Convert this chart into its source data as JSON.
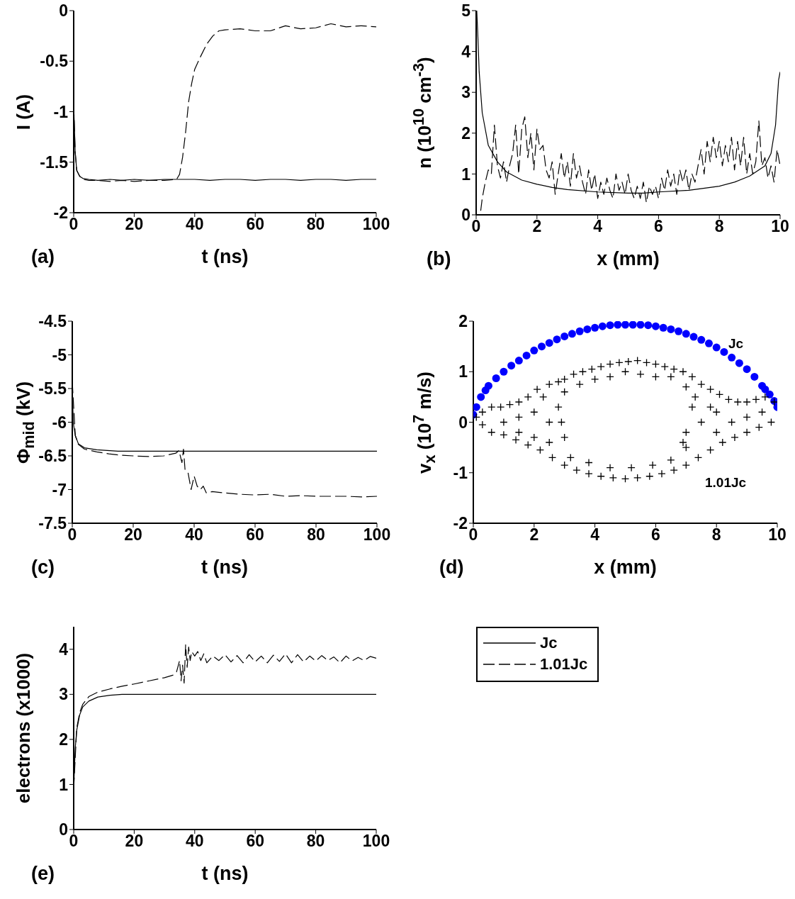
{
  "chart_data": [
    {
      "type": "line",
      "xlabel": "t (ns)",
      "ylabel": "I (A)",
      "annotations": [
        "(a)"
      ],
      "xlim": [
        0,
        100
      ],
      "xticks": [
        0,
        20,
        40,
        60,
        80,
        100
      ],
      "ylim": [
        -2,
        0
      ],
      "yticks": [
        -2,
        -1.5,
        -1,
        -0.5,
        0
      ],
      "series": [
        {
          "color": "#000000",
          "line_style": "solid",
          "x": [
            0,
            0.5,
            1,
            2,
            3,
            5,
            8,
            12,
            16,
            20,
            25,
            30,
            35,
            40,
            45,
            50,
            55,
            60,
            65,
            70,
            75,
            80,
            85,
            90,
            95,
            100
          ],
          "values": [
            -0.93,
            -1.4,
            -1.58,
            -1.64,
            -1.66,
            -1.67,
            -1.68,
            -1.67,
            -1.68,
            -1.67,
            -1.68,
            -1.67,
            -1.67,
            -1.67,
            -1.68,
            -1.67,
            -1.67,
            -1.68,
            -1.67,
            -1.67,
            -1.68,
            -1.67,
            -1.67,
            -1.68,
            -1.67,
            -1.67
          ]
        },
        {
          "color": "#000000",
          "line_style": "dashed",
          "x": [
            0,
            0.5,
            1,
            2,
            3,
            5,
            8,
            12,
            16,
            20,
            25,
            30,
            34,
            35,
            36,
            37,
            38,
            39,
            40,
            42,
            44,
            46,
            48,
            50,
            55,
            60,
            65,
            70,
            75,
            80,
            85,
            90,
            95,
            100
          ],
          "values": [
            -0.93,
            -1.4,
            -1.58,
            -1.64,
            -1.67,
            -1.68,
            -1.68,
            -1.69,
            -1.68,
            -1.69,
            -1.68,
            -1.68,
            -1.67,
            -1.62,
            -1.45,
            -1.2,
            -0.9,
            -0.72,
            -0.58,
            -0.45,
            -0.33,
            -0.25,
            -0.2,
            -0.19,
            -0.18,
            -0.2,
            -0.2,
            -0.15,
            -0.18,
            -0.17,
            -0.13,
            -0.16,
            -0.15,
            -0.16
          ]
        }
      ]
    },
    {
      "type": "line",
      "xlabel": "x (mm)",
      "ylabel": "n (10$^{10}$ cm$^{-3}$)",
      "annotations": [
        "(b)"
      ],
      "xlim": [
        0,
        10
      ],
      "xticks": [
        0,
        2,
        4,
        6,
        8,
        10
      ],
      "ylim": [
        0,
        5
      ],
      "yticks": [
        0,
        1,
        2,
        3,
        4,
        5
      ],
      "series": [
        {
          "color": "#000000",
          "line_style": "solid",
          "x": [
            0.02,
            0.05,
            0.1,
            0.2,
            0.4,
            0.7,
            1,
            1.5,
            2,
            2.5,
            3,
            4,
            5,
            5.5,
            6,
            7,
            8,
            8.5,
            9,
            9.5,
            9.7,
            9.85,
            9.95,
            10
          ],
          "values": [
            5,
            4.5,
            3.5,
            2.5,
            1.7,
            1.3,
            1.05,
            0.85,
            0.75,
            0.67,
            0.62,
            0.56,
            0.53,
            0.53,
            0.56,
            0.6,
            0.7,
            0.8,
            0.95,
            1.2,
            1.5,
            2.2,
            3.3,
            3.5
          ]
        },
        {
          "color": "#000000",
          "line_style": "dashed",
          "x": [
            0.15,
            0.2,
            0.3,
            0.4,
            0.5,
            0.6,
            0.7,
            0.8,
            0.9,
            1.0,
            1.1,
            1.2,
            1.3,
            1.4,
            1.5,
            1.6,
            1.7,
            1.8,
            1.9,
            2.0,
            2.1,
            2.2,
            2.3,
            2.4,
            2.5,
            2.6,
            2.7,
            2.8,
            2.9,
            3.0,
            3.1,
            3.2,
            3.3,
            3.4,
            3.5,
            3.6,
            3.7,
            3.8,
            3.9,
            4.0,
            4.1,
            4.2,
            4.3,
            4.4,
            4.5,
            4.6,
            4.7,
            4.8,
            4.9,
            5.0,
            5.1,
            5.2,
            5.3,
            5.4,
            5.5,
            5.6,
            5.7,
            5.8,
            5.9,
            6.0,
            6.1,
            6.2,
            6.3,
            6.4,
            6.5,
            6.6,
            6.7,
            6.8,
            6.9,
            7.0,
            7.1,
            7.2,
            7.3,
            7.4,
            7.5,
            7.6,
            7.7,
            7.8,
            7.9,
            8.0,
            8.1,
            8.2,
            8.3,
            8.4,
            8.5,
            8.6,
            8.7,
            8.8,
            8.9,
            9.0,
            9.1,
            9.2,
            9.3,
            9.4,
            9.5,
            9.6,
            9.7,
            9.8,
            9.9,
            10.0
          ],
          "values": [
            0.1,
            0.4,
            0.8,
            1.1,
            1.0,
            2.2,
            1.2,
            0.9,
            1.3,
            0.8,
            1.2,
            1.5,
            2.2,
            1.0,
            2.1,
            2.4,
            1.4,
            2.0,
            1.1,
            2.1,
            1.6,
            1.7,
            1.1,
            0.9,
            1.3,
            0.5,
            1.0,
            1.5,
            0.9,
            1.3,
            0.7,
            1.5,
            0.9,
            1.2,
            0.8,
            0.5,
            1.1,
            0.6,
            1.0,
            0.4,
            0.8,
            0.5,
            0.9,
            0.6,
            0.4,
            1.0,
            0.6,
            0.8,
            0.5,
            1.0,
            0.6,
            0.4,
            0.7,
            0.4,
            0.8,
            0.3,
            0.7,
            0.5,
            0.7,
            0.4,
            0.9,
            0.6,
            1.1,
            0.7,
            1.0,
            0.5,
            1.1,
            0.8,
            1.1,
            0.6,
            1.0,
            0.8,
            1.2,
            1.6,
            1.0,
            1.8,
            1.3,
            1.9,
            1.4,
            1.8,
            1.2,
            1.7,
            1.3,
            1.9,
            1.1,
            1.8,
            1.2,
            1.9,
            1.0,
            1.5,
            1.0,
            1.3,
            2.3,
            1.2,
            1.4,
            0.9,
            1.2,
            0.8,
            1.6,
            1.2
          ]
        }
      ]
    },
    {
      "type": "line",
      "xlabel": "t (ns)",
      "ylabel": "Φ$_{mid}$ (kV)",
      "annotations": [
        "(c)"
      ],
      "xlim": [
        0,
        100
      ],
      "xticks": [
        0,
        20,
        40,
        60,
        80,
        100
      ],
      "ylim": [
        -7.5,
        -4.5
      ],
      "yticks": [
        -7.5,
        -7,
        -6.5,
        -6,
        -5.5,
        -5,
        -4.5
      ],
      "series": [
        {
          "color": "#000000",
          "line_style": "solid",
          "x": [
            0,
            0.3,
            1,
            2,
            4,
            8,
            15,
            20,
            40,
            60,
            80,
            100
          ],
          "values": [
            -5.4,
            -6.0,
            -6.2,
            -6.32,
            -6.38,
            -6.41,
            -6.43,
            -6.43,
            -6.43,
            -6.43,
            -6.43,
            -6.43
          ]
        },
        {
          "color": "#000000",
          "line_style": "dashed",
          "x": [
            0,
            1,
            2,
            4,
            8,
            12,
            16,
            20,
            25,
            30,
            34,
            35,
            36,
            36.5,
            37,
            38,
            39,
            40,
            41,
            42,
            43,
            44,
            46,
            48,
            50,
            55,
            60,
            65,
            70,
            75,
            80,
            85,
            90,
            95,
            100
          ],
          "values": [
            -5.4,
            -6.2,
            -6.33,
            -6.4,
            -6.44,
            -6.47,
            -6.49,
            -6.5,
            -6.51,
            -6.5,
            -6.46,
            -6.42,
            -6.6,
            -6.4,
            -6.7,
            -6.75,
            -7.0,
            -6.8,
            -6.95,
            -7.0,
            -6.95,
            -7.05,
            -7.03,
            -7.04,
            -7.05,
            -7.07,
            -7.08,
            -7.07,
            -7.1,
            -7.09,
            -7.1,
            -7.1,
            -7.1,
            -7.11,
            -7.1
          ]
        }
      ]
    },
    {
      "type": "scatter",
      "xlabel": "x (mm)",
      "ylabel": "v$_{x}$ (10$^{7}$ m/s)",
      "annotations": [
        "(d)"
      ],
      "xlim": [
        0,
        10
      ],
      "xticks": [
        0,
        2,
        4,
        6,
        8,
        10
      ],
      "ylim": [
        -2,
        2
      ],
      "yticks": [
        -2,
        -1,
        0,
        1,
        2
      ],
      "series": [
        {
          "name": "Jc",
          "color": "#0000ff",
          "marker": "circle",
          "x": [
            0,
            0.1,
            0.25,
            0.4,
            0.5,
            0.75,
            1,
            1.25,
            1.5,
            1.75,
            2,
            2.25,
            2.5,
            2.75,
            3,
            3.25,
            3.5,
            3.75,
            4,
            4.25,
            4.5,
            4.75,
            5,
            5.25,
            5.5,
            5.75,
            6,
            6.25,
            6.5,
            6.75,
            7,
            7.25,
            7.5,
            7.75,
            8,
            8.25,
            8.5,
            8.75,
            9,
            9.25,
            9.5,
            9.6,
            9.75,
            9.9,
            10
          ],
          "values": [
            0.15,
            0.3,
            0.5,
            0.63,
            0.72,
            0.87,
            1.0,
            1.12,
            1.22,
            1.32,
            1.42,
            1.5,
            1.57,
            1.64,
            1.7,
            1.75,
            1.8,
            1.84,
            1.87,
            1.9,
            1.92,
            1.93,
            1.93,
            1.93,
            1.93,
            1.92,
            1.9,
            1.87,
            1.84,
            1.8,
            1.75,
            1.69,
            1.63,
            1.56,
            1.48,
            1.39,
            1.28,
            1.17,
            1.05,
            0.9,
            0.72,
            0.65,
            0.55,
            0.42,
            0.3
          ]
        },
        {
          "name": "1.01Jc",
          "color": "#000000",
          "marker": "cross",
          "x": [
            0.1,
            0.3,
            0.6,
            0.9,
            1.2,
            1.5,
            1.8,
            2.1,
            2.3,
            2.5,
            2.8,
            3.0,
            3.3,
            3.6,
            3.9,
            4.2,
            4.5,
            4.8,
            5.1,
            5.4,
            5.7,
            6.0,
            6.3,
            6.6,
            6.9,
            7.2,
            7.5,
            7.8,
            8.1,
            8.4,
            8.7,
            9.0,
            9.3,
            9.6,
            9.9,
            3.0,
            3.5,
            4.0,
            4.5,
            5.0,
            5.5,
            6.0,
            6.5,
            7.0,
            7.3,
            2.8,
            2.9,
            3.0,
            7.2,
            7.0,
            6.9,
            0.3,
            0.6,
            1.0,
            1.4,
            1.8,
            2.2,
            2.6,
            3.0,
            3.4,
            3.8,
            4.2,
            4.6,
            5.0,
            5.4,
            5.8,
            6.2,
            6.6,
            7.0,
            7.4,
            7.8,
            8.2,
            8.6,
            9.0,
            9.4,
            9.8,
            3.2,
            3.8,
            4.5,
            5.2,
            5.9,
            6.5,
            7.0,
            1.0,
            1.5,
            2.0,
            2.5,
            1.5,
            2.0,
            2.5,
            7.5,
            8.0,
            8.5,
            9.0,
            8.0,
            7.8,
            9.5
          ],
          "values": [
            0.1,
            0.2,
            0.3,
            0.3,
            0.35,
            0.4,
            0.5,
            0.65,
            0.5,
            0.75,
            0.8,
            0.85,
            0.95,
            1.0,
            1.05,
            1.1,
            1.15,
            1.18,
            1.2,
            1.22,
            1.18,
            1.15,
            1.1,
            1.05,
            1.0,
            0.9,
            0.75,
            0.65,
            0.55,
            0.45,
            0.4,
            0.4,
            0.45,
            0.5,
            0.4,
            0.6,
            0.75,
            0.85,
            0.9,
            1.0,
            0.95,
            0.9,
            0.9,
            0.7,
            0.5,
            0.3,
            0.0,
            -0.3,
            0.3,
            -0.2,
            -0.4,
            -0.05,
            -0.2,
            -0.25,
            -0.35,
            -0.45,
            -0.55,
            -0.7,
            -0.85,
            -0.95,
            -1.02,
            -1.07,
            -1.1,
            -1.12,
            -1.1,
            -1.07,
            -1.02,
            -0.95,
            -0.85,
            -0.7,
            -0.55,
            -0.4,
            -0.3,
            -0.2,
            -0.1,
            0.0,
            -0.7,
            -0.8,
            -0.9,
            -0.9,
            -0.85,
            -0.75,
            -0.5,
            0.0,
            0.1,
            0.2,
            0.0,
            -0.2,
            -0.3,
            -0.4,
            0.0,
            0.2,
            0.0,
            0.1,
            -0.2,
            0.3,
            0.2
          ]
        }
      ]
    },
    {
      "type": "line",
      "xlabel": "t (ns)",
      "ylabel": "electrons (x1000)",
      "annotations": [
        "(e)"
      ],
      "xlim": [
        0,
        100
      ],
      "xticks": [
        0,
        20,
        40,
        60,
        80,
        100
      ],
      "ylim": [
        0,
        4.5
      ],
      "yticks": [
        0,
        1,
        2,
        3,
        4
      ],
      "legend": "right",
      "series": [
        {
          "name": "Jc",
          "color": "#000000",
          "line_style": "solid",
          "x": [
            0,
            0.5,
            1,
            2,
            3,
            5,
            8,
            12,
            16,
            20,
            40,
            60,
            80,
            100
          ],
          "values": [
            0.9,
            1.8,
            2.2,
            2.55,
            2.72,
            2.85,
            2.94,
            2.98,
            3.0,
            3.0,
            3.0,
            3.0,
            3.0,
            3.0
          ]
        },
        {
          "name": "1.01Jc",
          "color": "#000000",
          "line_style": "dashed",
          "x": [
            0,
            1,
            2,
            3,
            5,
            8,
            12,
            16,
            20,
            25,
            30,
            33,
            34,
            35,
            35.5,
            36,
            36.5,
            37,
            37.5,
            38,
            38.5,
            39,
            40,
            41,
            42,
            43,
            44,
            46,
            48,
            50,
            52,
            54,
            56,
            58,
            60,
            62,
            64,
            66,
            68,
            70,
            72,
            74,
            76,
            78,
            80,
            82,
            84,
            86,
            88,
            90,
            92,
            94,
            96,
            98,
            100
          ],
          "values": [
            0.9,
            2.25,
            2.6,
            2.78,
            2.95,
            3.05,
            3.12,
            3.18,
            3.23,
            3.3,
            3.37,
            3.43,
            3.5,
            3.75,
            3.3,
            3.65,
            3.25,
            4.1,
            3.6,
            4.05,
            3.75,
            3.95,
            3.85,
            3.95,
            3.75,
            3.9,
            3.7,
            3.85,
            3.75,
            3.88,
            3.72,
            3.86,
            3.7,
            3.88,
            3.72,
            3.85,
            3.7,
            3.87,
            3.73,
            3.9,
            3.7,
            3.88,
            3.72,
            3.85,
            3.74,
            3.86,
            3.75,
            3.83,
            3.7,
            3.85,
            3.74,
            3.82,
            3.75,
            3.84,
            3.8
          ]
        }
      ]
    }
  ]
}
